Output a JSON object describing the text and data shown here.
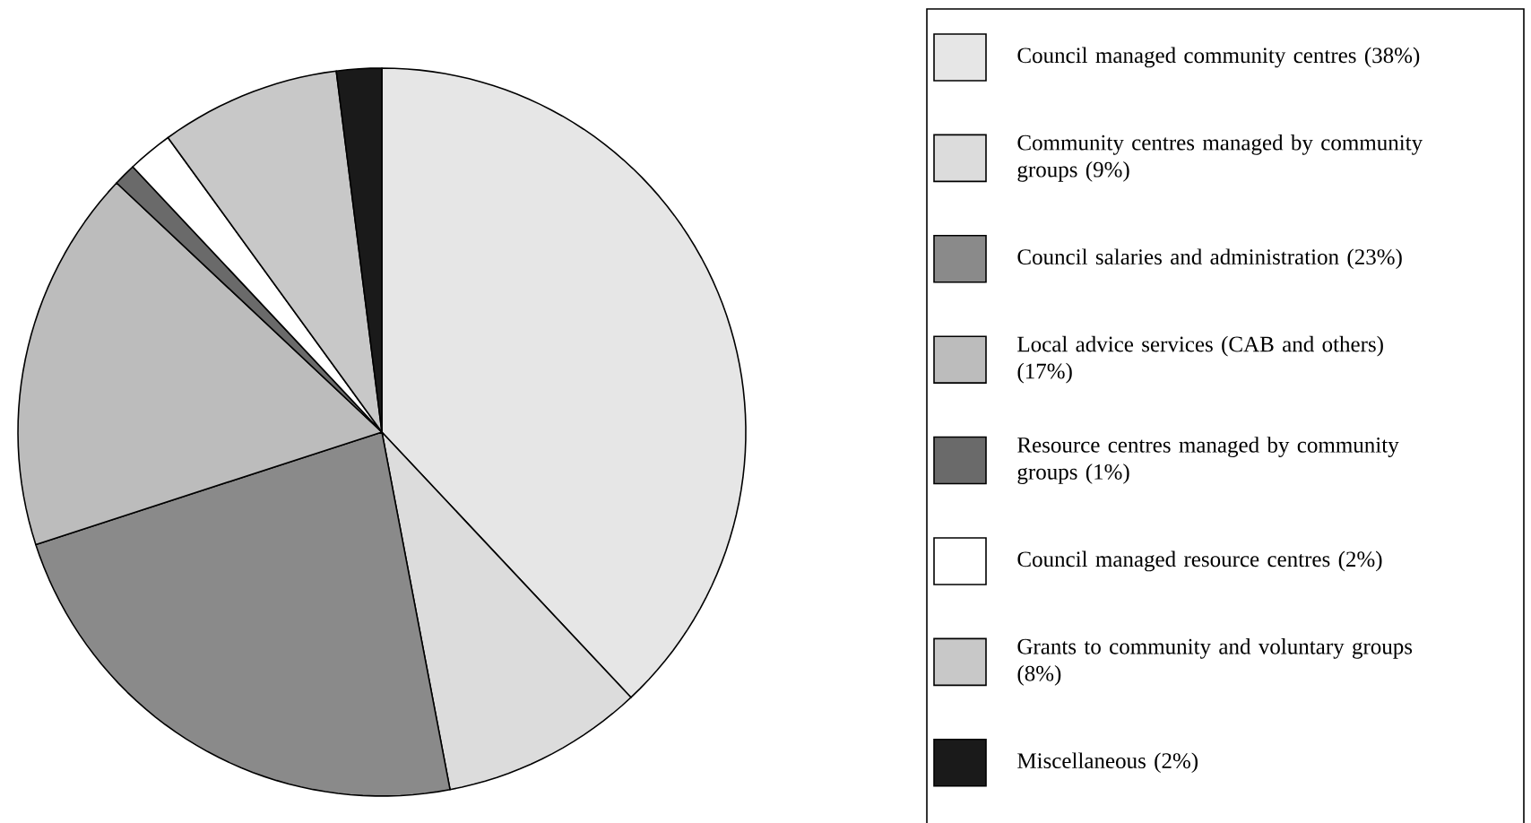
{
  "chart_data": {
    "type": "pie",
    "legend": "right",
    "categories": [
      "Council managed community centres (38%)",
      "Community centres managed by community groups (9%)",
      "Council salaries and administration (23%)",
      "Local advice services (CAB and others) (17%)",
      "Resource centres managed by community groups (1%)",
      "Council managed resource centres (2%)",
      "Grants to community and voluntary groups (8%)",
      "Miscellaneous (2%)"
    ],
    "values": [
      38,
      9,
      23,
      17,
      1,
      2,
      8,
      2
    ],
    "colors": [
      "#e6e6e6",
      "#dcdcdc",
      "#8a8a8a",
      "#bcbcbc",
      "#6a6a6a",
      "#ffffff",
      "#c8c8c8",
      "#1a1a1a"
    ]
  }
}
